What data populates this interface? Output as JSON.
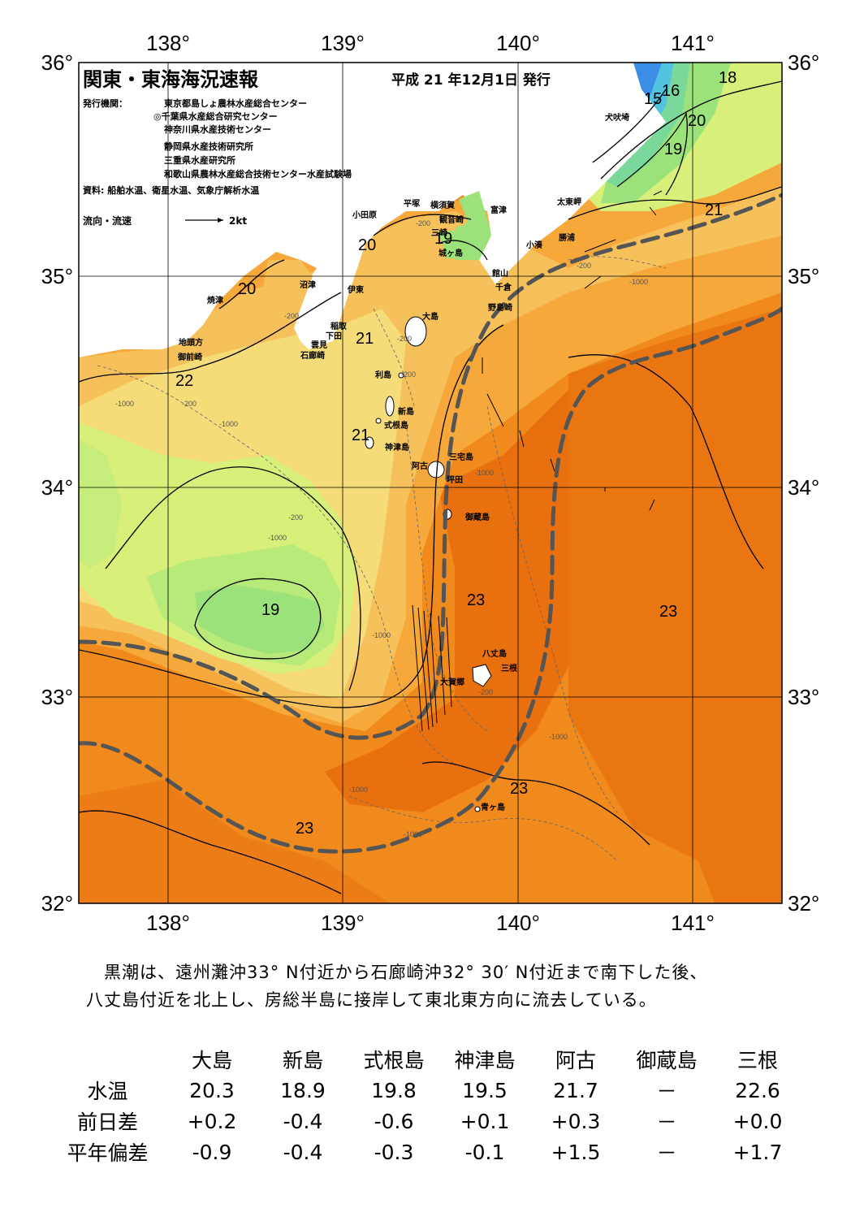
{
  "header": {
    "title": "関東・東海海況速報",
    "issue_date": "平成 21 年12月1日 発行",
    "publisher_label": "発行機関：",
    "publishers": [
      "東京都島しょ農林水産総合センター",
      "◎千葉県水産総合研究センター",
      "神奈川県水産技術センター",
      "静岡県水産技術研究所",
      "三重県水産研究所",
      "和歌山県農林水産総合技術センター水産試験場"
    ],
    "sources": "資料: 船舶水温、衛星水温、気象庁解析水温",
    "current_legend": "流向・流速",
    "current_scale": "2kt"
  },
  "axes": {
    "lon_labels": [
      "138°",
      "139°",
      "140°",
      "141°"
    ],
    "lat_labels": [
      "36°",
      "35°",
      "34°",
      "33°",
      "32°"
    ]
  },
  "places": {
    "inubosaki": "犬吠埼",
    "taitomisaki": "太東岬",
    "katsuura": "勝浦",
    "kominato": "小湊",
    "tateyama": "館山",
    "chikura": "千倉",
    "nojimazaki": "野島崎",
    "futtsu": "富津",
    "kannonzaki": "観音崎",
    "yokosuka": "横須賀",
    "hirazuka": "平塚",
    "odawara": "小田原",
    "jogashima": "城ヶ島",
    "miura": "三崎",
    "numazu": "沼津",
    "yaizu": "焼津",
    "ito": "伊東",
    "inatori": "稲取",
    "shimoda": "下田",
    "kumomi": "雲見",
    "irozaki": "石廊崎",
    "jitokata": "地頭方",
    "omaezaki": "御前崎",
    "oshima": "大島",
    "toshima": "利島",
    "niijima": "新島",
    "shikinejima": "式根島",
    "kozushima": "神津島",
    "miyakejima": "三宅島",
    "ako": "阿古",
    "tsubota": "坪田",
    "mikurajima": "御蔵島",
    "hachijojima": "八丈島",
    "mitsune": "三根",
    "okago": "大賀郷",
    "aogashima": "青ヶ島"
  },
  "isotherm_labels": [
    "15",
    "16",
    "18",
    "19",
    "20",
    "20",
    "21",
    "19",
    "20",
    "21",
    "22",
    "21",
    "19",
    "23",
    "23",
    "23",
    "23",
    "20"
  ],
  "depth_labels": [
    "-200",
    "-1000"
  ],
  "colors": {
    "deep_orange": "#e8700f",
    "orange": "#f08a1c",
    "light_orange": "#f7a83a",
    "pale_orange": "#f6c15a",
    "yellow": "#f5dc78",
    "yellow_green": "#d8ef7a",
    "green": "#9be27a",
    "mint": "#7ad99a",
    "cyan": "#52c4e0",
    "blue": "#3a8ee6",
    "land": "#ffffff",
    "kuroshio_axis": "#555555"
  },
  "summary": [
    "黒潮は、遠州灘沖33° N付近から石廊崎沖32° 30′ N付近まで南下した後、",
    "八丈島付近を北上し、房総半島に接岸して東北東方向に流去している。"
  ],
  "table": {
    "columns": [
      "大島",
      "新島",
      "式根島",
      "神津島",
      "阿古",
      "御蔵島",
      "三根"
    ],
    "rows": [
      {
        "label": "水温",
        "values": [
          "20.3",
          "18.9",
          "19.8",
          "19.5",
          "21.7",
          "－",
          "22.6"
        ]
      },
      {
        "label": "前日差",
        "values": [
          "+0.2",
          "-0.4",
          "-0.6",
          "+0.1",
          "+0.3",
          "－",
          "+0.0"
        ]
      },
      {
        "label": "平年偏差",
        "values": [
          "-0.9",
          "-0.4",
          "-0.3",
          "-0.1",
          "+1.5",
          "－",
          "+1.7"
        ]
      }
    ]
  }
}
